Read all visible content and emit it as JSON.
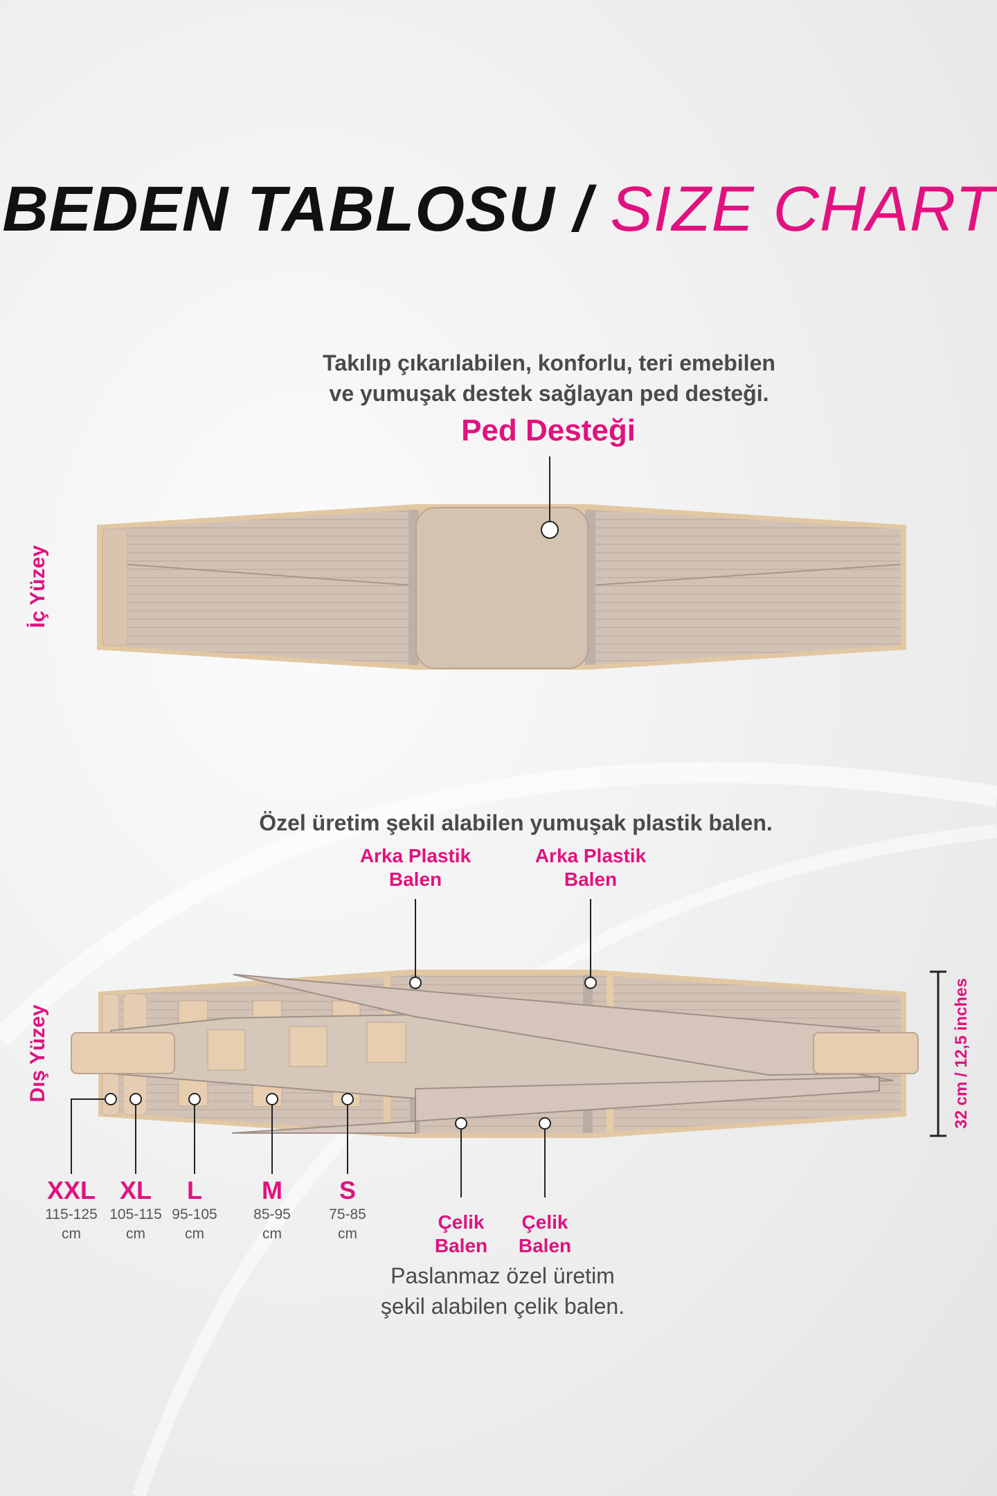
{
  "title": {
    "part1": "BEDEN TABLOSU /",
    "part2": "SIZE CHART"
  },
  "inner": {
    "side_label": "İç Yüzey",
    "description": [
      "Takılıp çıkarılabilen, konforlu, teri emebilen",
      "ve yumuşak destek sağlayan ped desteği."
    ],
    "pad_label": "Ped Desteği"
  },
  "outer": {
    "side_label": "Dış Yüzey",
    "description": "Özel üretim şekil alabilen yumuşak plastik balen.",
    "back_boning": [
      [
        "Arka Plastik",
        "Balen"
      ],
      [
        "Arka Plastik",
        "Balen"
      ]
    ],
    "steel_boning": [
      [
        "Çelik",
        "Balen"
      ],
      [
        "Çelik",
        "Balen"
      ]
    ],
    "steel_description": [
      "Paslanmaz özel üretim",
      "şekil alabilen çelik balen."
    ],
    "height_label": "32 cm / 12,5 inches",
    "sizes": [
      {
        "size": "XXL",
        "range": "115-125",
        "unit": "cm"
      },
      {
        "size": "XL",
        "range": "105-115",
        "unit": "cm"
      },
      {
        "size": "L",
        "range": "95-105",
        "unit": "cm"
      },
      {
        "size": "M",
        "range": "85-95",
        "unit": "cm"
      },
      {
        "size": "S",
        "range": "75-85",
        "unit": "cm"
      }
    ]
  },
  "colors": {
    "accent": "#e0127f",
    "belt": "#d3c3b6",
    "edge": "#e2c7a3"
  }
}
